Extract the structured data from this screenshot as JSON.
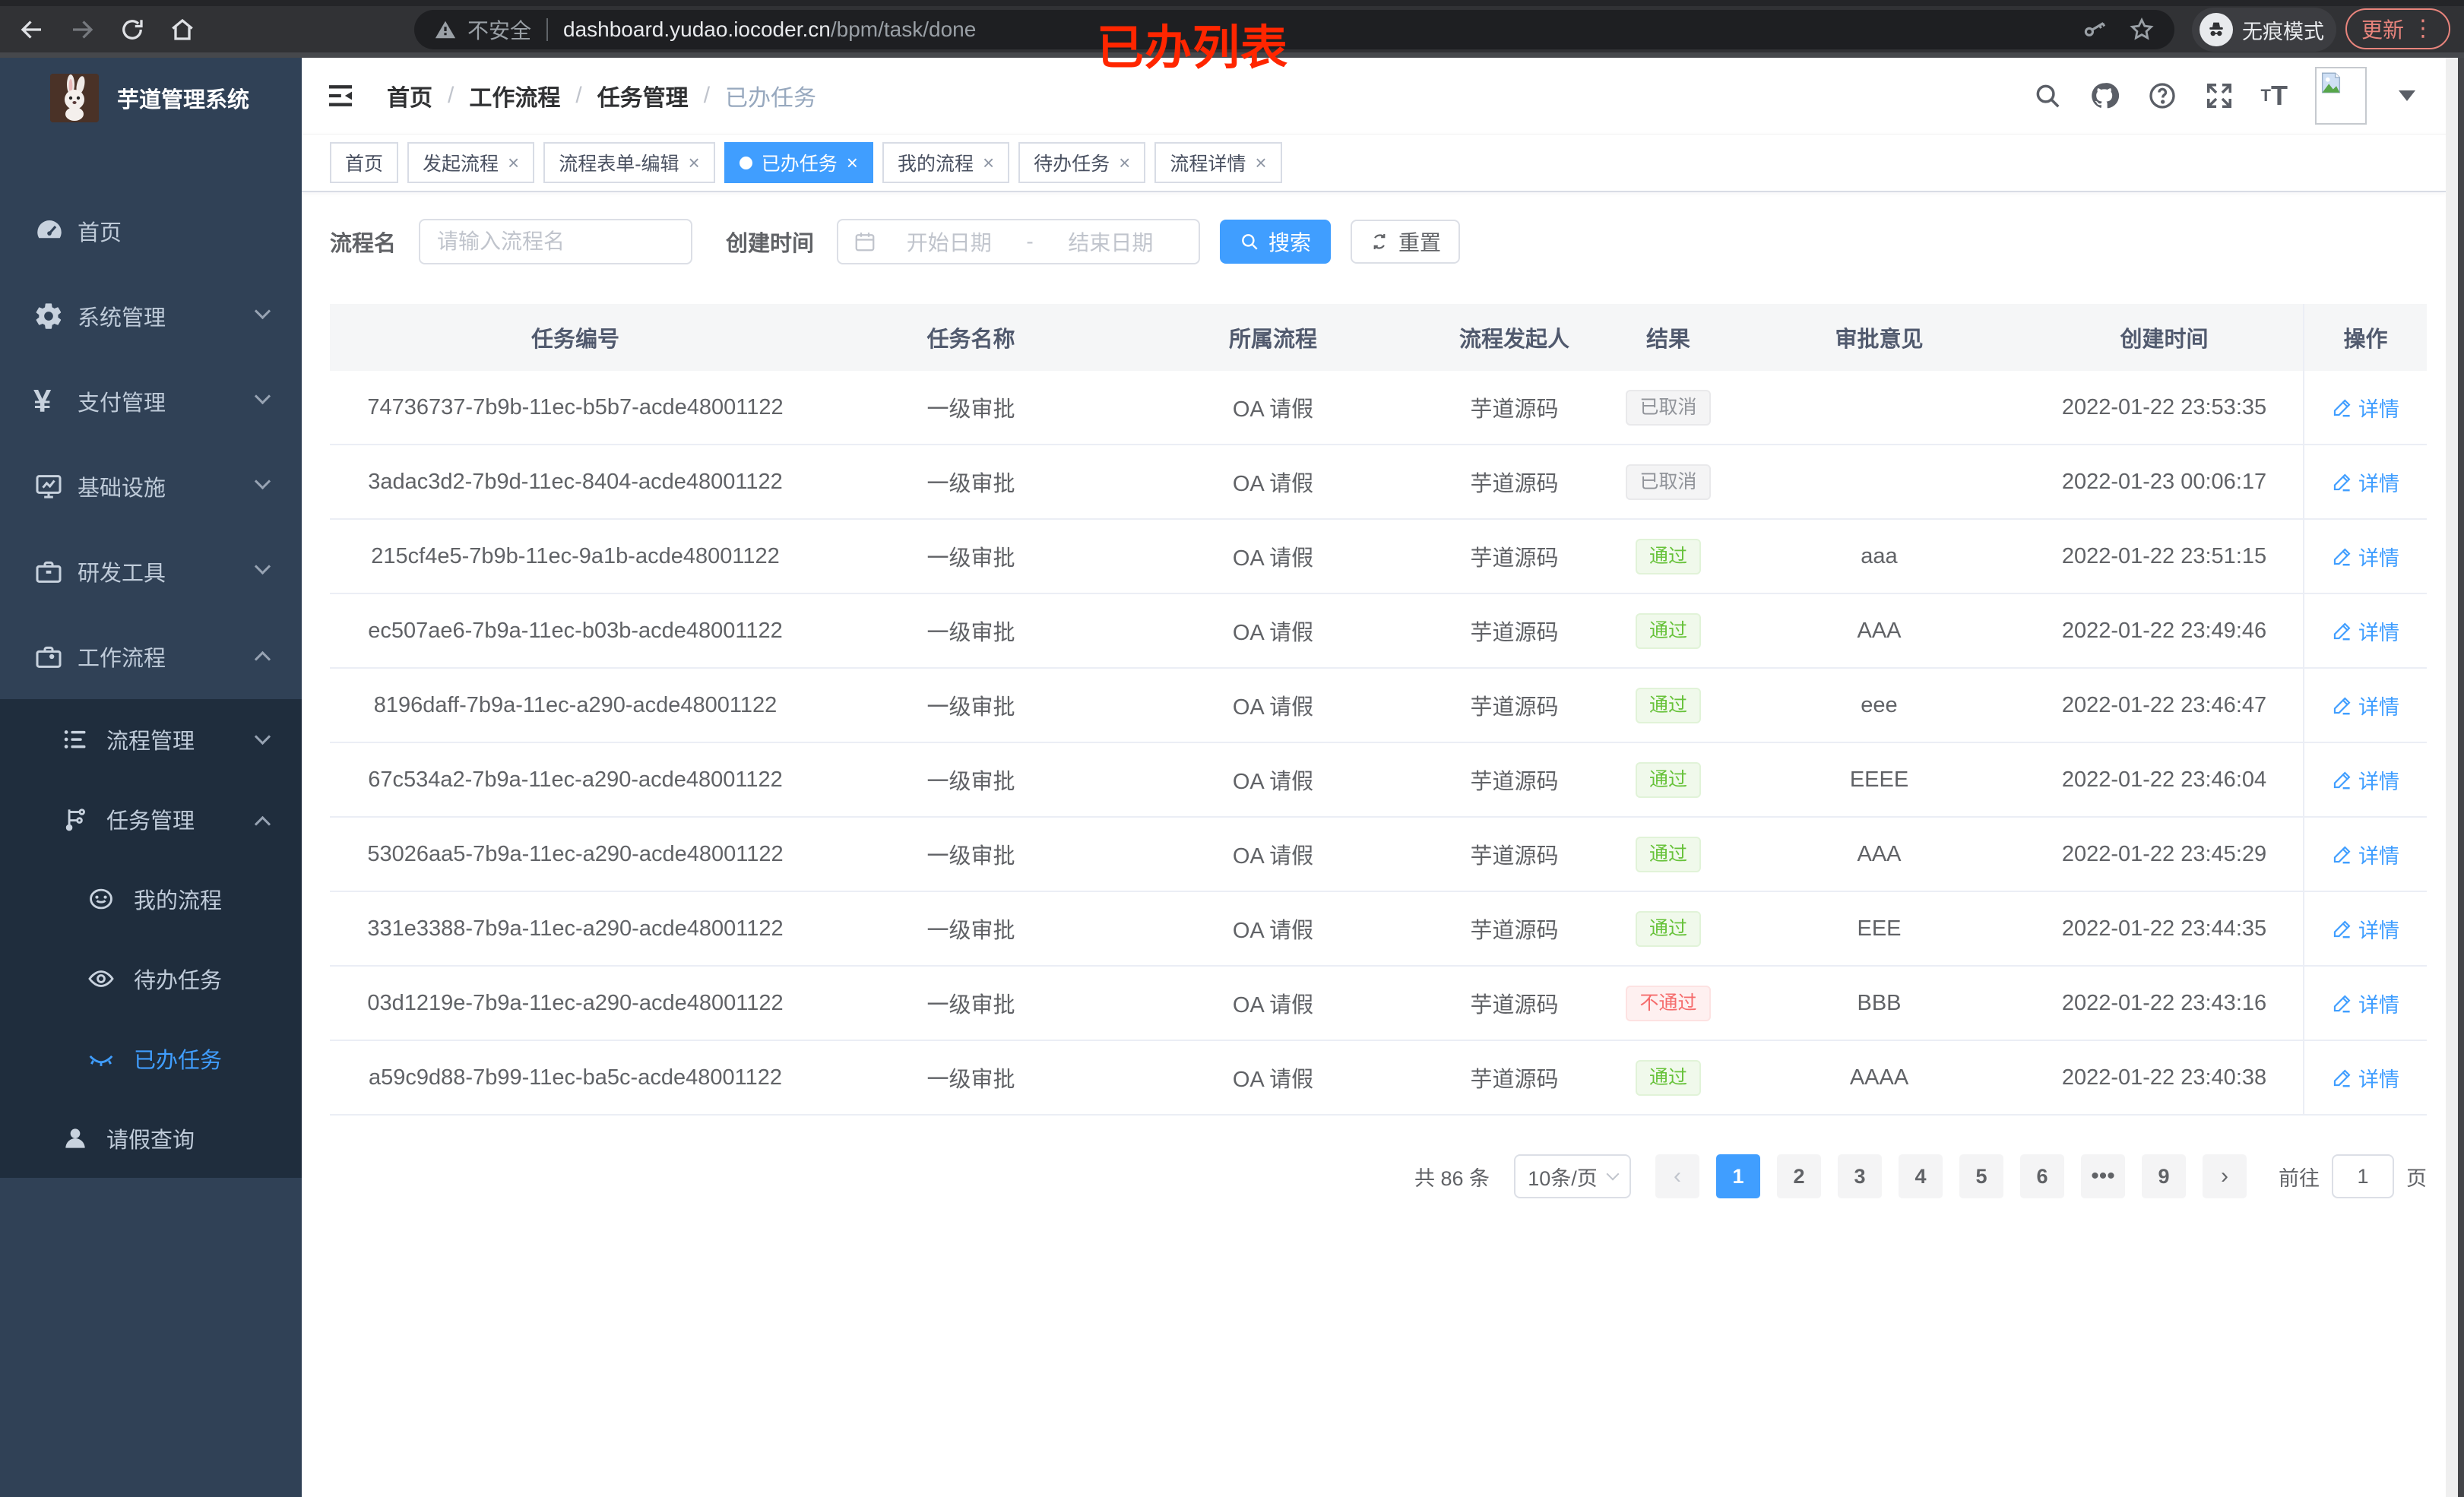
{
  "browser": {
    "security_label": "不安全",
    "url_host": "dashboard.yudao.iocoder.cn",
    "url_path": "/bpm/task/done",
    "incognito_label": "无痕模式",
    "update_button": "更新"
  },
  "annotation": {
    "title": "已办列表"
  },
  "sidebar": {
    "app_title": "芋道管理系统",
    "items": [
      {
        "label": "首页"
      },
      {
        "label": "系统管理"
      },
      {
        "label": "支付管理"
      },
      {
        "label": "基础设施"
      },
      {
        "label": "研发工具"
      },
      {
        "label": "工作流程"
      },
      {
        "label": "流程管理"
      },
      {
        "label": "任务管理"
      },
      {
        "label": "我的流程"
      },
      {
        "label": "待办任务"
      },
      {
        "label": "已办任务"
      },
      {
        "label": "请假查询"
      }
    ]
  },
  "breadcrumb": {
    "items": [
      "首页",
      "工作流程",
      "任务管理",
      "已办任务"
    ]
  },
  "tabs": [
    {
      "label": "首页",
      "closable": false,
      "active": false
    },
    {
      "label": "发起流程",
      "closable": true,
      "active": false
    },
    {
      "label": "流程表单-编辑",
      "closable": true,
      "active": false
    },
    {
      "label": "已办任务",
      "closable": true,
      "active": true
    },
    {
      "label": "我的流程",
      "closable": true,
      "active": false
    },
    {
      "label": "待办任务",
      "closable": true,
      "active": false
    },
    {
      "label": "流程详情",
      "closable": true,
      "active": false
    }
  ],
  "filters": {
    "process_name_label": "流程名",
    "process_name_placeholder": "请输入流程名",
    "create_time_label": "创建时间",
    "date_start_placeholder": "开始日期",
    "date_separator": "-",
    "date_end_placeholder": "结束日期",
    "search_button": "搜索",
    "reset_button": "重置"
  },
  "table": {
    "columns": [
      "任务编号",
      "任务名称",
      "所属流程",
      "流程发起人",
      "结果",
      "审批意见",
      "创建时间",
      "操作"
    ],
    "action_label": "详情",
    "rows": [
      {
        "id": "74736737-7b9b-11ec-b5b7-acde48001122",
        "task": "一级审批",
        "process": "OA 请假",
        "starter": "芋道源码",
        "result": "已取消",
        "result_type": "info",
        "comment": "",
        "created": "2022-01-22 23:53:35"
      },
      {
        "id": "3adac3d2-7b9d-11ec-8404-acde48001122",
        "task": "一级审批",
        "process": "OA 请假",
        "starter": "芋道源码",
        "result": "已取消",
        "result_type": "info",
        "comment": "",
        "created": "2022-01-23 00:06:17"
      },
      {
        "id": "215cf4e5-7b9b-11ec-9a1b-acde48001122",
        "task": "一级审批",
        "process": "OA 请假",
        "starter": "芋道源码",
        "result": "通过",
        "result_type": "success",
        "comment": "aaa",
        "created": "2022-01-22 23:51:15"
      },
      {
        "id": "ec507ae6-7b9a-11ec-b03b-acde48001122",
        "task": "一级审批",
        "process": "OA 请假",
        "starter": "芋道源码",
        "result": "通过",
        "result_type": "success",
        "comment": "AAA",
        "created": "2022-01-22 23:49:46"
      },
      {
        "id": "8196daff-7b9a-11ec-a290-acde48001122",
        "task": "一级审批",
        "process": "OA 请假",
        "starter": "芋道源码",
        "result": "通过",
        "result_type": "success",
        "comment": "eee",
        "created": "2022-01-22 23:46:47"
      },
      {
        "id": "67c534a2-7b9a-11ec-a290-acde48001122",
        "task": "一级审批",
        "process": "OA 请假",
        "starter": "芋道源码",
        "result": "通过",
        "result_type": "success",
        "comment": "EEEE",
        "created": "2022-01-22 23:46:04"
      },
      {
        "id": "53026aa5-7b9a-11ec-a290-acde48001122",
        "task": "一级审批",
        "process": "OA 请假",
        "starter": "芋道源码",
        "result": "通过",
        "result_type": "success",
        "comment": "AAA",
        "created": "2022-01-22 23:45:29"
      },
      {
        "id": "331e3388-7b9a-11ec-a290-acde48001122",
        "task": "一级审批",
        "process": "OA 请假",
        "starter": "芋道源码",
        "result": "通过",
        "result_type": "success",
        "comment": "EEE",
        "created": "2022-01-22 23:44:35"
      },
      {
        "id": "03d1219e-7b9a-11ec-a290-acde48001122",
        "task": "一级审批",
        "process": "OA 请假",
        "starter": "芋道源码",
        "result": "不通过",
        "result_type": "danger",
        "comment": "BBB",
        "created": "2022-01-22 23:43:16"
      },
      {
        "id": "a59c9d88-7b99-11ec-ba5c-acde48001122",
        "task": "一级审批",
        "process": "OA 请假",
        "starter": "芋道源码",
        "result": "通过",
        "result_type": "success",
        "comment": "AAAA",
        "created": "2022-01-22 23:40:38"
      }
    ]
  },
  "pagination": {
    "total_label": "共 86 条",
    "page_size": "10条/页",
    "pages": [
      "1",
      "2",
      "3",
      "4",
      "5",
      "6",
      "•••",
      "9"
    ],
    "active_page": "1",
    "prev_label": "‹",
    "next_label": "›",
    "goto_label": "前往",
    "goto_value": "1",
    "goto_suffix": "页"
  },
  "colors": {
    "primary": "#409eff",
    "sidebar_bg": "#304156",
    "submenu_bg": "#1f2d3d",
    "tag_success": "#67c23a",
    "tag_danger": "#f56c6c",
    "tag_info": "#909399",
    "annotation_red": "#ff2600"
  }
}
